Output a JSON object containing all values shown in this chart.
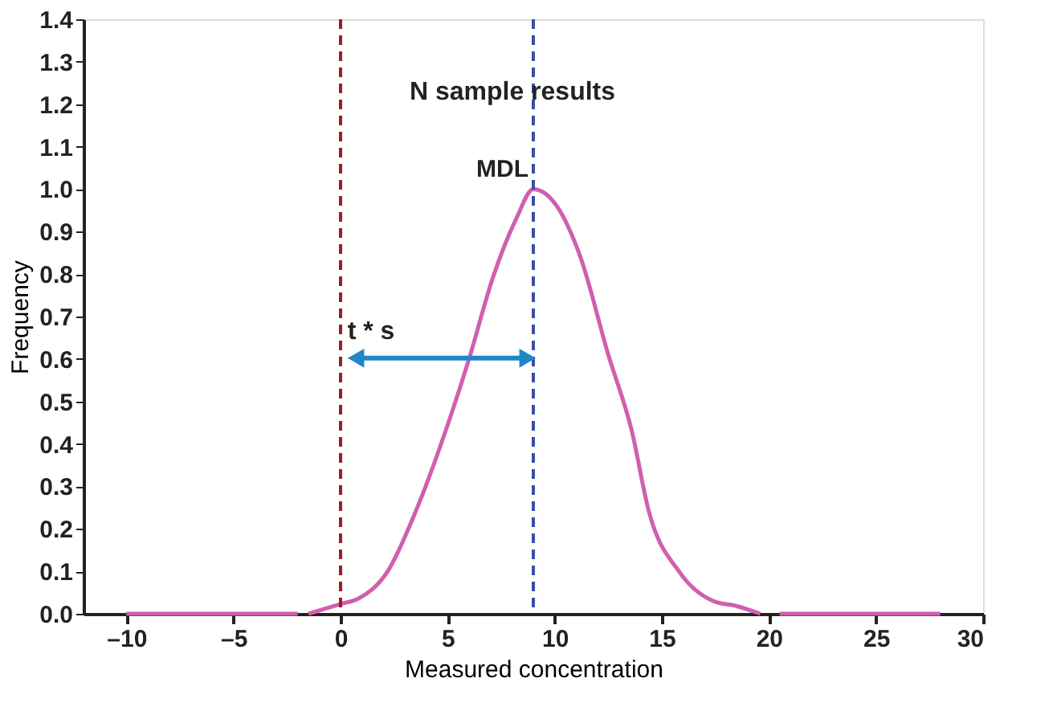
{
  "chart_data": {
    "type": "line",
    "xlabel": "Measured concentration",
    "ylabel": "Frequency",
    "xlim": [
      -12,
      30
    ],
    "ylim": [
      0,
      1.4
    ],
    "xticks": [
      {
        "value": -10,
        "label": "–10"
      },
      {
        "value": -5,
        "label": "–5"
      },
      0,
      5,
      10,
      15,
      20,
      25,
      30
    ],
    "yticks": [
      {
        "value": 0,
        "label": "0.0"
      },
      0.1,
      0.2,
      0.3,
      0.4,
      0.5,
      0.6,
      0.7,
      0.8,
      0.9,
      {
        "value": 1,
        "label": "1.0"
      },
      1.1,
      1.2,
      1.3,
      1.4
    ],
    "series": [
      {
        "color": "#d05fae",
        "line_style": "solid",
        "x": [
          -10,
          -2,
          -1.75,
          -1.5,
          0,
          0.8,
          2.2,
          3.5,
          4.9,
          6.0,
          7.1,
          8.2,
          9.0,
          10.1,
          11.2,
          12.5,
          13.6,
          14.4,
          15.8,
          17.4,
          18.5,
          19.6,
          20,
          20.5,
          28
        ],
        "values": [
          0,
          0,
          null,
          0,
          0.023,
          0.035,
          0.1,
          0.24,
          0.43,
          0.6,
          0.79,
          0.93,
          1.0,
          0.96,
          0.84,
          0.61,
          0.43,
          0.24,
          0.1,
          0.03,
          0.018,
          0,
          null,
          0,
          0
        ]
      }
    ],
    "ref_lines": [
      {
        "axis": "x",
        "value": 0,
        "color": "#a01c20",
        "line_style": "dashed"
      },
      {
        "axis": "x",
        "value": 9,
        "label": "MDL",
        "color": "#3a4fa8",
        "line_style": "dashed"
      }
    ],
    "annotations": [
      "N sample results",
      "t * s"
    ],
    "grid": false
  }
}
